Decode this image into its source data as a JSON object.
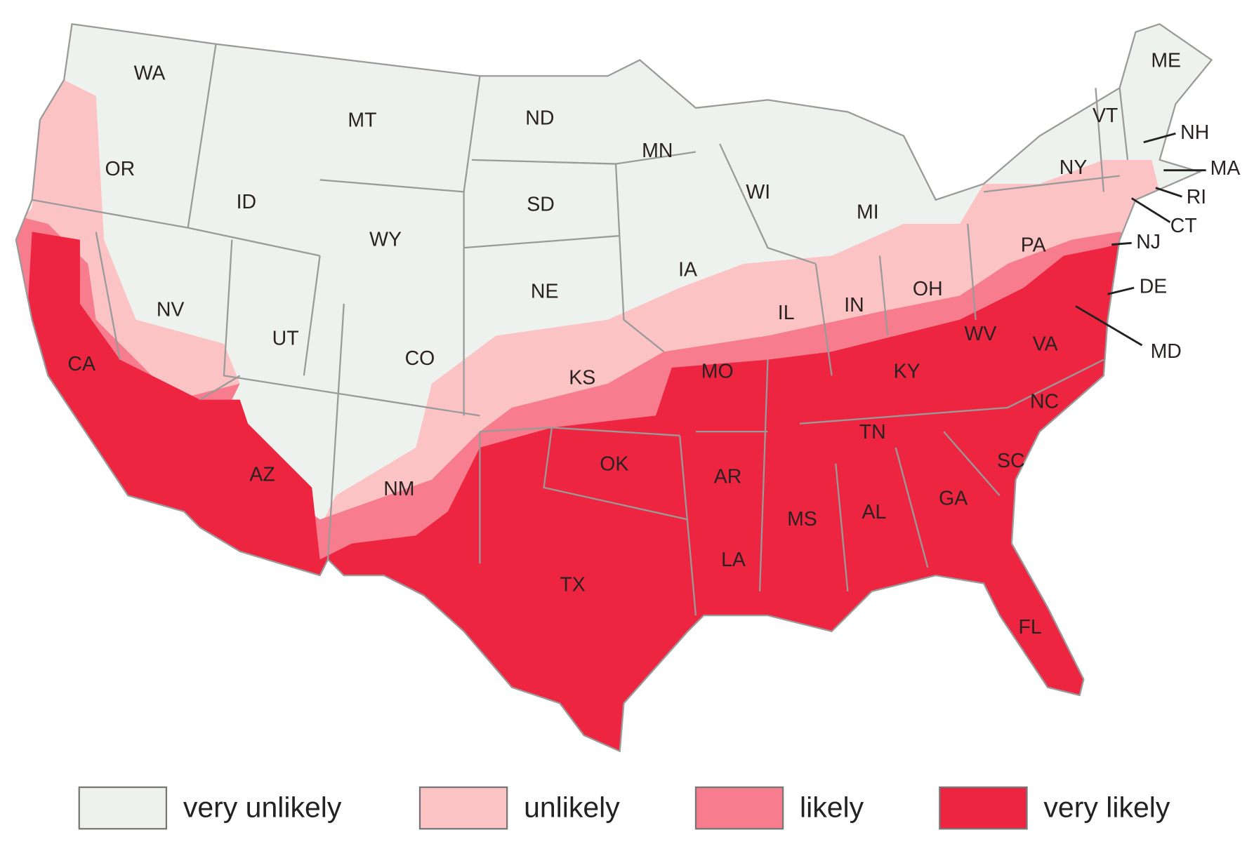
{
  "map": {
    "states": [
      "WA",
      "OR",
      "CA",
      "ID",
      "NV",
      "MT",
      "WY",
      "UT",
      "AZ",
      "CO",
      "NM",
      "ND",
      "SD",
      "NE",
      "KS",
      "OK",
      "TX",
      "MN",
      "IA",
      "MO",
      "AR",
      "LA",
      "WI",
      "IL",
      "MI",
      "IN",
      "OH",
      "KY",
      "TN",
      "MS",
      "AL",
      "GA",
      "FL",
      "SC",
      "NC",
      "VA",
      "WV",
      "PA",
      "NY",
      "VT",
      "ME",
      "NH",
      "MA",
      "RI",
      "CT",
      "NJ",
      "DE",
      "MD"
    ],
    "legend": [
      {
        "label": "very unlikely",
        "color": "#eef2ee"
      },
      {
        "label": "unlikely",
        "color": "#fcc3c5"
      },
      {
        "label": "likely",
        "color": "#f77c8d"
      },
      {
        "label": "very likely",
        "color": "#ee2540"
      }
    ]
  }
}
